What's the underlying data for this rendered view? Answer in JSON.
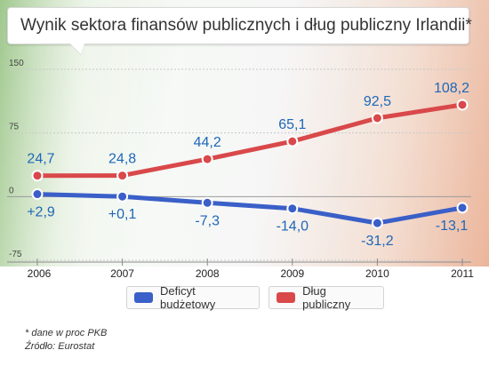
{
  "title": "Wynik sektora finansów publicznych i dług publiczny Irlandii*",
  "colors": {
    "debt": "#d9484a",
    "deficit": "#3a5fc8",
    "label": "#1e67b8"
  },
  "chart_data": {
    "type": "line",
    "categories": [
      "2006",
      "2007",
      "2008",
      "2009",
      "2010",
      "2011"
    ],
    "ylim": [
      -75,
      150
    ],
    "yticks": [
      "150",
      "75",
      "0",
      "-75"
    ],
    "series": [
      {
        "name": "Dług publiczny",
        "values": [
          24.7,
          24.8,
          44.2,
          65.1,
          92.5,
          108.2
        ],
        "labels": [
          "24,7",
          "24,8",
          "44,2",
          "65,1",
          "92,5",
          "108,2"
        ]
      },
      {
        "name": "Deficyt budżetowy",
        "values": [
          2.9,
          0.1,
          -7.3,
          -14.0,
          -31.2,
          -13.1
        ],
        "labels": [
          "+2,9",
          "+0,1",
          "-7,3",
          "-14,0",
          "-31,2",
          "-13,1"
        ]
      }
    ],
    "legend": [
      "Deficyt budżetowy",
      "Dług publiczny"
    ]
  },
  "footnotes": {
    "note": "* dane w proc PKB",
    "source": "Źródło: Eurostat"
  }
}
